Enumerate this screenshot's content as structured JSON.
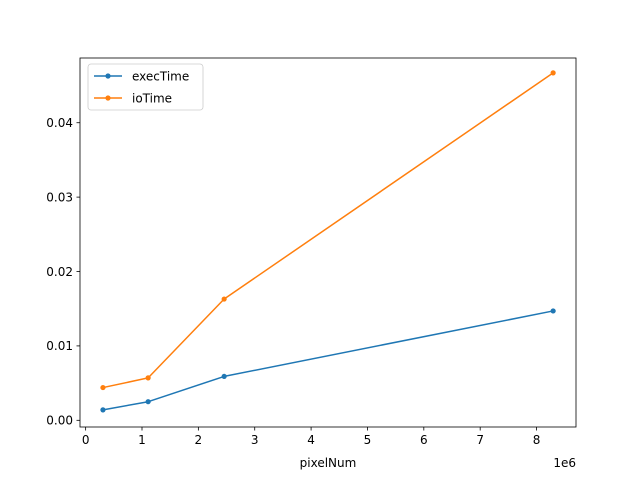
{
  "chart_data": {
    "type": "line",
    "title": "",
    "xlabel": "pixelNum",
    "ylabel": "",
    "x_offset_label": "1e6",
    "x_scale": 1000000,
    "xlim": [
      -0.1,
      8.7
    ],
    "ylim": [
      -0.0009,
      0.0487
    ],
    "x_ticks": [
      0,
      1,
      2,
      3,
      4,
      5,
      6,
      7,
      8
    ],
    "x_tick_labels": [
      "0",
      "1",
      "2",
      "3",
      "4",
      "5",
      "6",
      "7",
      "8"
    ],
    "y_ticks": [
      0,
      0.01,
      0.02,
      0.03,
      0.04
    ],
    "y_tick_labels": [
      "0.00",
      "0.01",
      "0.02",
      "0.03",
      "0.04"
    ],
    "grid": false,
    "legend_position": "upper-left",
    "x": [
      307200,
      1108800,
      2457600,
      8294400
    ],
    "series": [
      {
        "name": "execTime",
        "color": "#1f77b4",
        "marker": "dot",
        "values": [
          0.0014,
          0.0025,
          0.0059,
          0.0147
        ]
      },
      {
        "name": "ioTime",
        "color": "#ff7f0e",
        "marker": "dot",
        "values": [
          0.0044,
          0.0057,
          0.0163,
          0.0467
        ]
      }
    ]
  }
}
